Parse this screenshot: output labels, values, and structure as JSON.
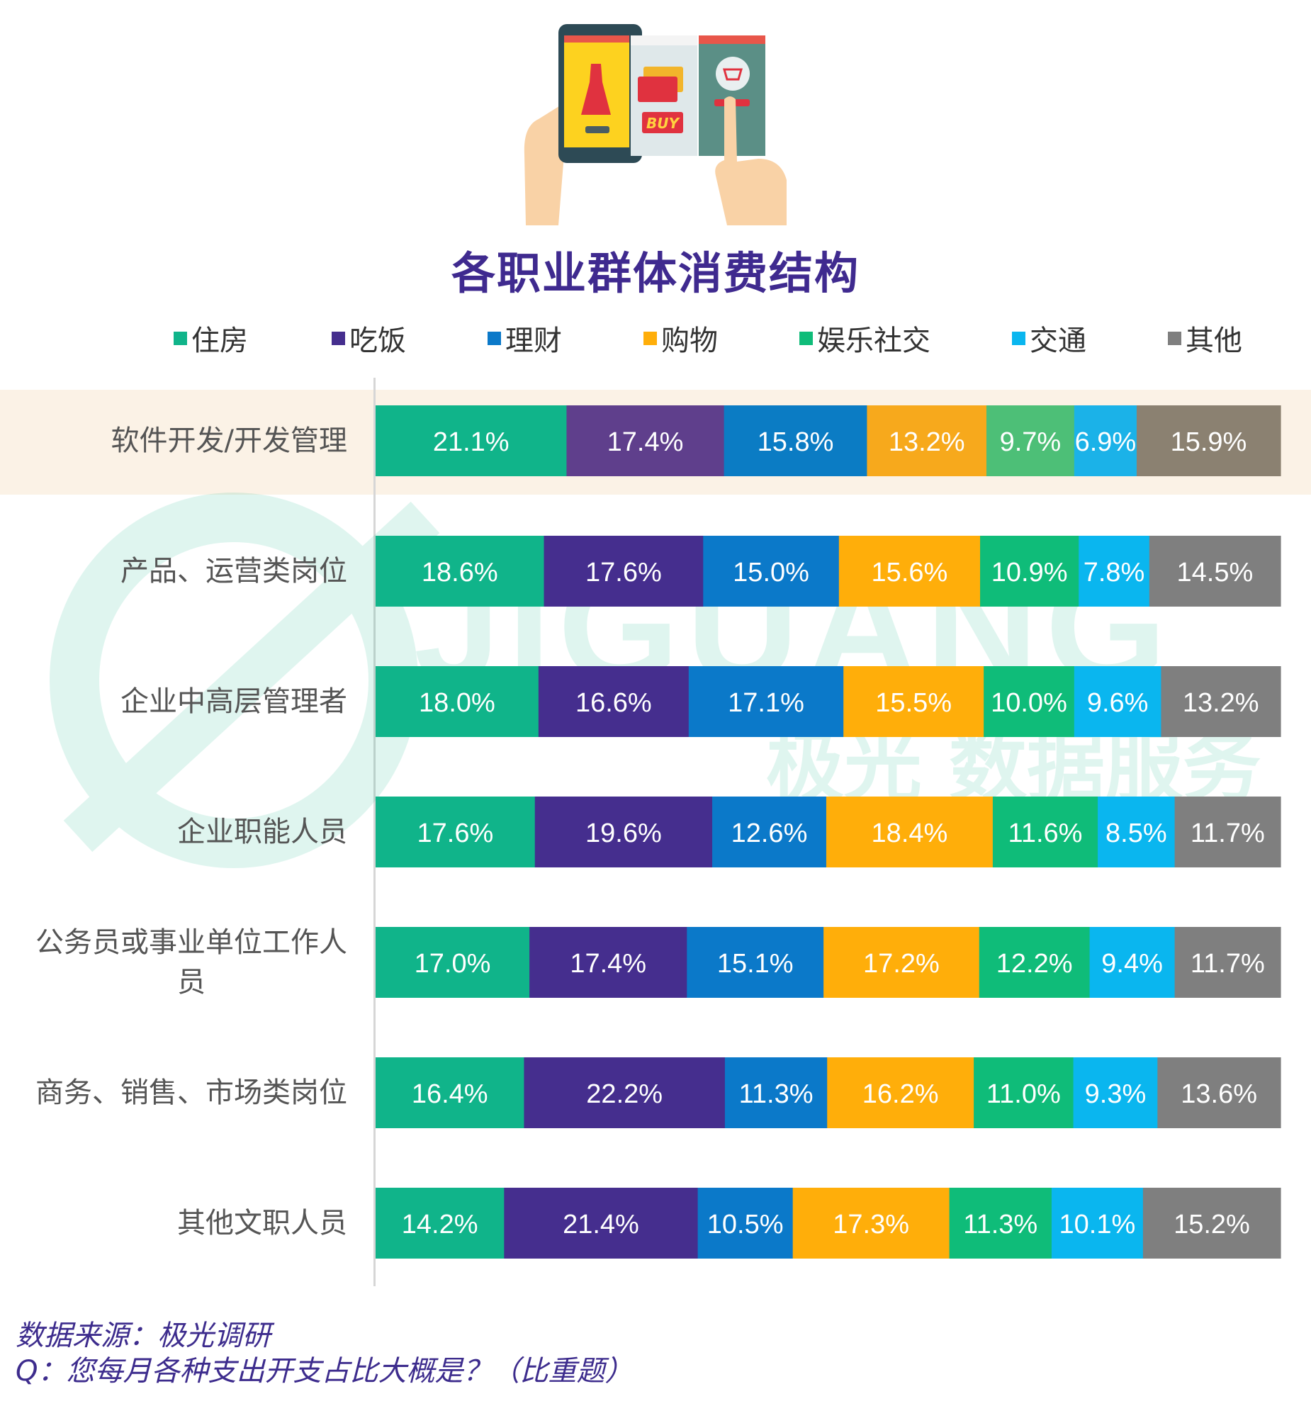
{
  "chart_data": {
    "type": "bar",
    "orientation": "horizontal",
    "stacked": true,
    "title": "各职业群体消费结构",
    "categories": [
      "软件开发/开发管理",
      "产品、运营类岗位",
      "企业中高层管理者",
      "企业职能人员",
      "公务员或事业单位工作人员",
      "商务、销售、市场类岗位",
      "其他文职人员"
    ],
    "series": [
      {
        "name": "住房",
        "color": "#10b48a",
        "values": [
          21.1,
          18.6,
          18.0,
          17.6,
          17.0,
          16.4,
          14.2
        ]
      },
      {
        "name": "吃饭",
        "color": "#452e8e",
        "values": [
          17.4,
          17.6,
          16.6,
          19.6,
          17.4,
          22.2,
          21.4
        ]
      },
      {
        "name": "理财",
        "color": "#0b79c9",
        "values": [
          15.8,
          15.0,
          17.1,
          12.6,
          15.1,
          11.3,
          10.5
        ]
      },
      {
        "name": "购物",
        "color": "#ffae0a",
        "values": [
          13.2,
          15.6,
          15.5,
          18.4,
          17.2,
          16.2,
          17.3
        ]
      },
      {
        "name": "娱乐社交",
        "color": "#0fbc79",
        "values": [
          9.7,
          10.9,
          10.0,
          11.6,
          12.2,
          11.0,
          11.3
        ]
      },
      {
        "name": "交通",
        "color": "#0ab6ef",
        "values": [
          6.9,
          7.8,
          9.6,
          8.5,
          9.4,
          9.3,
          10.1
        ]
      },
      {
        "name": "其他",
        "color": "#7f7f7f",
        "values": [
          15.9,
          14.5,
          13.2,
          11.7,
          11.7,
          13.6,
          15.2
        ]
      }
    ],
    "labels": [
      [
        "21.1%",
        "17.4%",
        "15.8%",
        "13.2%",
        "9.7%",
        "6.9%",
        "15.9%"
      ],
      [
        "18.6%",
        "17.6%",
        "15.0%",
        "15.6%",
        "10.9%",
        "7.8%",
        "14.5%"
      ],
      [
        "18.0%",
        "16.6%",
        "17.1%",
        "15.5%",
        "10.0%",
        "9.6%",
        "13.2%"
      ],
      [
        "17.6%",
        "19.6%",
        "12.6%",
        "18.4%",
        "11.6%",
        "8.5%",
        "11.7%"
      ],
      [
        "17.0%",
        "17.4%",
        "15.1%",
        "17.2%",
        "12.2%",
        "9.4%",
        "11.7%"
      ],
      [
        "16.4%",
        "22.2%",
        "11.3%",
        "16.2%",
        "11.0%",
        "9.3%",
        "13.6%"
      ],
      [
        "14.2%",
        "21.4%",
        "10.5%",
        "17.3%",
        "11.3%",
        "10.1%",
        "15.2%"
      ]
    ],
    "xlim": [
      0,
      100
    ],
    "grid": false,
    "legend_position": "top",
    "highlight_row": 0,
    "highlight_colors": [
      "#10b48a",
      "#5f3f8c",
      "#0b7cc4",
      "#f7a91c",
      "#4dbf77",
      "#1bb2e8",
      "#8b8171"
    ]
  },
  "watermark": {
    "brand": "JIGUANG",
    "subtitle": "极光 数据服务"
  },
  "footer": {
    "source": "数据来源：极光调研",
    "question": "Q：您每月各种支出开支占比大概是？（比重题）"
  },
  "illustration": {
    "icon": "shopping-phone-illustration",
    "buy_text": "BUY"
  }
}
